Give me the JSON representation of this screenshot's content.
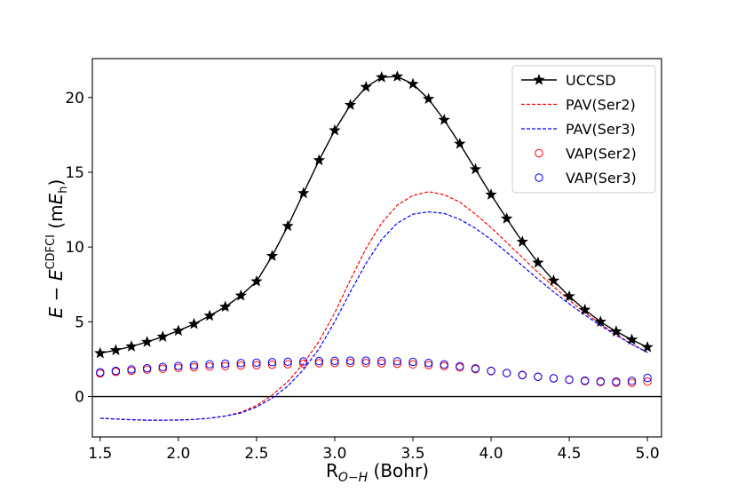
{
  "chart_data": {
    "type": "line",
    "xlabel": "R",
    "xlabel_sub": "O−H",
    "xlabel_unit": " (Bohr)",
    "ylabel_E": "E",
    "ylabel_minus": " − ",
    "ylabel_E2": "E",
    "ylabel_sup": "CDFCI",
    "ylabel_unit_open": " (m",
    "ylabel_unit_E": "E",
    "ylabel_unit_sub": "h",
    "ylabel_unit_close": ")",
    "xlim": [
      1.45,
      5.09
    ],
    "ylim": [
      -2.7,
      22.6
    ],
    "xticks": [
      1.5,
      2.0,
      2.5,
      3.0,
      3.5,
      4.0,
      4.5,
      5.0
    ],
    "xtick_labels": [
      "1.5",
      "2.0",
      "2.5",
      "3.0",
      "3.5",
      "4.0",
      "4.5",
      "5.0"
    ],
    "yticks": [
      0,
      5,
      10,
      15,
      20
    ],
    "ytick_labels": [
      "0",
      "5",
      "10",
      "15",
      "20"
    ],
    "grid": false,
    "zero_line": true,
    "legend_position": "top-right",
    "x": [
      1.5,
      1.6,
      1.7,
      1.8,
      1.9,
      2.0,
      2.1,
      2.2,
      2.3,
      2.4,
      2.5,
      2.6,
      2.7,
      2.8,
      2.9,
      3.0,
      3.1,
      3.2,
      3.3,
      3.4,
      3.5,
      3.6,
      3.7,
      3.8,
      3.9,
      4.0,
      4.1,
      4.2,
      4.3,
      4.4,
      4.5,
      4.6,
      4.7,
      4.8,
      4.9,
      5.0
    ],
    "series": [
      {
        "name": "UCCSD",
        "style": "line-star",
        "color": "#000000",
        "values": [
          2.9,
          3.1,
          3.35,
          3.65,
          4.0,
          4.4,
          4.85,
          5.4,
          6.0,
          6.75,
          7.7,
          9.4,
          11.4,
          13.6,
          15.8,
          17.8,
          19.5,
          20.7,
          21.35,
          21.4,
          20.9,
          19.9,
          18.5,
          16.9,
          15.2,
          13.5,
          11.9,
          10.35,
          8.95,
          7.75,
          6.7,
          5.8,
          5.0,
          4.35,
          3.8,
          3.3
        ]
      },
      {
        "name": "PAV(Ser2)",
        "style": "dashed",
        "color": "#ff0000",
        "values": [
          -1.45,
          -1.5,
          -1.55,
          -1.58,
          -1.58,
          -1.57,
          -1.53,
          -1.45,
          -1.3,
          -1.05,
          -0.6,
          0.1,
          1.0,
          2.2,
          3.7,
          5.6,
          7.8,
          9.9,
          11.6,
          12.8,
          13.45,
          13.7,
          13.5,
          13.0,
          12.2,
          11.3,
          10.3,
          9.3,
          8.3,
          7.35,
          6.45,
          5.6,
          4.85,
          4.15,
          3.5,
          2.95
        ]
      },
      {
        "name": "PAV(Ser3)",
        "style": "dashed",
        "color": "#0000ff",
        "values": [
          -1.45,
          -1.5,
          -1.55,
          -1.58,
          -1.58,
          -1.57,
          -1.53,
          -1.45,
          -1.3,
          -1.1,
          -0.7,
          -0.1,
          0.7,
          1.8,
          3.2,
          5.0,
          7.0,
          8.9,
          10.5,
          11.6,
          12.2,
          12.35,
          12.25,
          11.85,
          11.25,
          10.5,
          9.65,
          8.75,
          7.85,
          7.0,
          6.2,
          5.45,
          4.75,
          4.1,
          3.5,
          2.95
        ]
      },
      {
        "name": "VAP(Ser2)",
        "style": "circle",
        "color": "#ff0000",
        "values": [
          1.55,
          1.65,
          1.72,
          1.8,
          1.86,
          1.92,
          1.96,
          2.0,
          2.03,
          2.07,
          2.1,
          2.13,
          2.16,
          2.2,
          2.23,
          2.25,
          2.25,
          2.24,
          2.22,
          2.19,
          2.15,
          2.1,
          2.04,
          1.95,
          1.83,
          1.7,
          1.58,
          1.45,
          1.33,
          1.22,
          1.12,
          1.03,
          0.97,
          0.93,
          0.92,
          1.0
        ]
      },
      {
        "name": "VAP(Ser3)",
        "style": "circle",
        "color": "#0000ff",
        "values": [
          1.62,
          1.72,
          1.82,
          1.9,
          1.98,
          2.05,
          2.1,
          2.16,
          2.2,
          2.24,
          2.27,
          2.3,
          2.33,
          2.35,
          2.37,
          2.39,
          2.4,
          2.4,
          2.38,
          2.36,
          2.32,
          2.25,
          2.15,
          2.03,
          1.88,
          1.72,
          1.57,
          1.43,
          1.32,
          1.22,
          1.14,
          1.07,
          1.02,
          1.0,
          1.05,
          1.25
        ]
      }
    ]
  }
}
